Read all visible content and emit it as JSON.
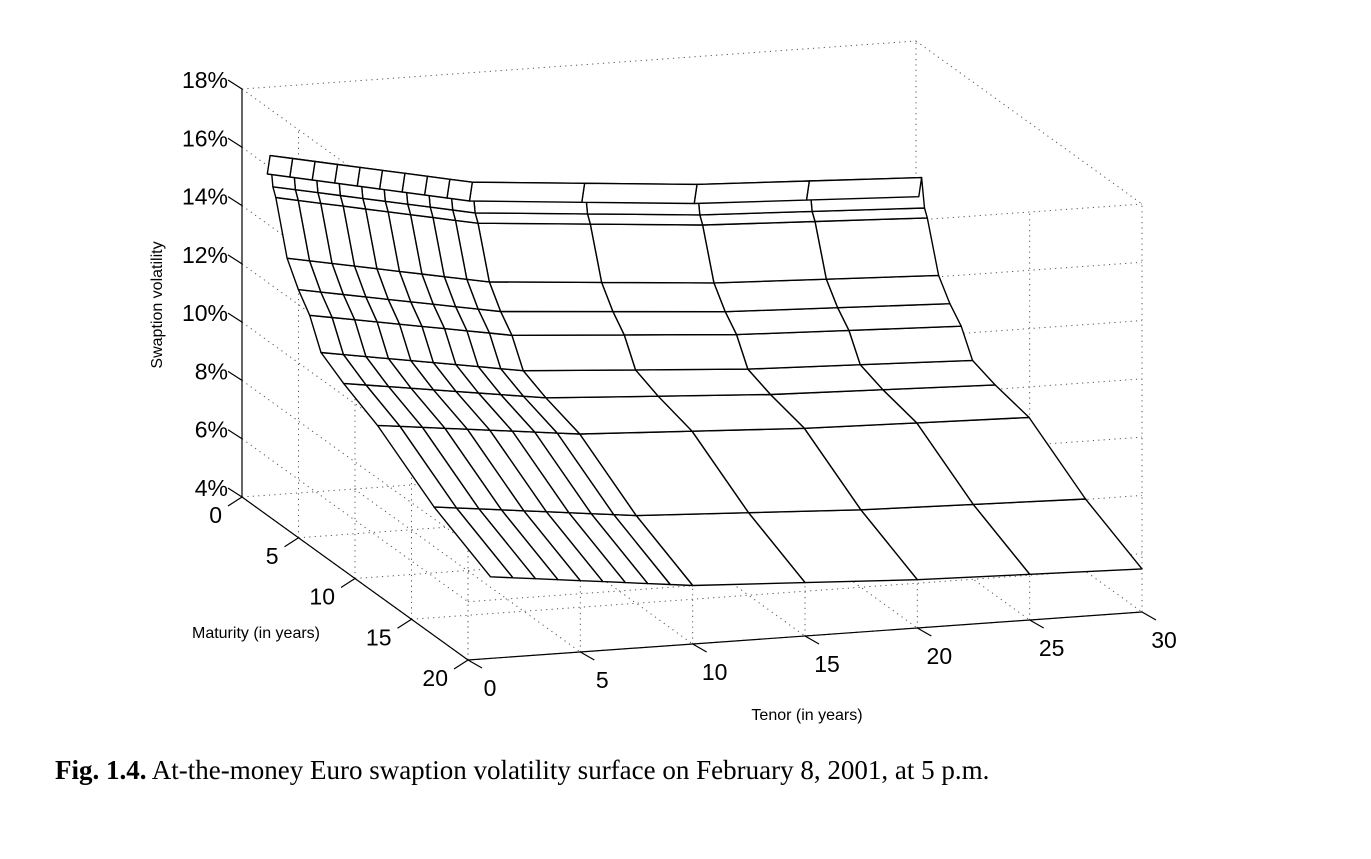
{
  "chart_data": {
    "type": "surface",
    "zlabel": "Swaption volatility",
    "xlabel": "Tenor (in years)",
    "ylabel": "Maturity (in years)",
    "ztick_labels": [
      "4%",
      "6%",
      "8%",
      "10%",
      "12%",
      "14%",
      "16%",
      "18%"
    ],
    "xtick_labels": [
      "0",
      "5",
      "10",
      "15",
      "20",
      "25",
      "30"
    ],
    "ytick_labels": [
      "0",
      "5",
      "10",
      "15",
      "20"
    ],
    "zlim": [
      4,
      18
    ],
    "xlim": [
      0,
      30
    ],
    "ylim": [
      0,
      20
    ],
    "grid": true,
    "tenors": [
      1,
      2,
      3,
      4,
      5,
      6,
      7,
      8,
      9,
      10,
      15,
      20,
      25,
      30
    ],
    "maturities": [
      0.25,
      0.5,
      0.75,
      1,
      2,
      3,
      4,
      5,
      7,
      10,
      15,
      20
    ],
    "vol_by_maturity": [
      15.1,
      15.8,
      14.8,
      14.5,
      12.7,
      11.9,
      11.3,
      10.3,
      9.8,
      9.2,
      7.8,
      6.8
    ],
    "tenor_decline": [
      0,
      0.1,
      0.2,
      0.3,
      0.4,
      0.5,
      0.6,
      0.7,
      0.8,
      0.9,
      1.1,
      1.3,
      1.4,
      1.5
    ]
  },
  "caption": {
    "label": "Fig. 1.4.",
    "text": " At-the-money Euro swaption volatility surface on February 8, 2001, at 5 p.m."
  }
}
